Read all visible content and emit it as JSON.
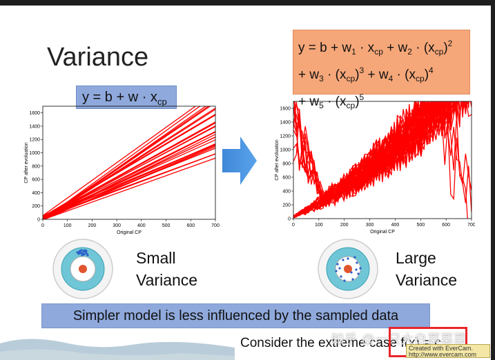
{
  "slide": {
    "title": "Variance",
    "left_eq": {
      "pre": "y = b + w · x",
      "sub": "cp"
    },
    "right_eq": {
      "line1": {
        "a": "y = b + w",
        "a_sub": "1",
        "b": " · x",
        "b_sub": "cp",
        "c": " + w",
        "c_sub": "2",
        "d": " · (x",
        "d_sub": "cp",
        "e": ")",
        "e_sup": "2"
      },
      "line2": {
        "a": "+ w",
        "a_sub": "3",
        "b": " · (x",
        "b_sub": "cp",
        "c": ")",
        "c_sup": "3",
        "d": " + w",
        "d_sub": "4",
        "e": " · (x",
        "e_sub": "cp",
        "f": ")",
        "f_sup": "4"
      },
      "line3": {
        "a": "+ w",
        "a_sub": "5",
        "b": " · (x",
        "b_sub": "cp",
        "c": ")",
        "c_sup": "5"
      }
    },
    "left_caption": {
      "line1": "Small",
      "line2": "Variance"
    },
    "right_caption": {
      "line1": "Large",
      "line2": "Variance"
    },
    "banner": "Simpler model is less influenced by the sampled data",
    "bottom_text": "Consider the extreme case f(x) = c",
    "watermark": "知乎 @一只大白菜菜菜",
    "evercam_line1": "Created with EverCam.",
    "evercam_line2": "http://www.evercam.com"
  },
  "chart_data": [
    {
      "type": "line",
      "xlabel": "Original CP",
      "ylabel": "CP after evoluation",
      "xlim": [
        0,
        700
      ],
      "ylim": [
        0,
        1700
      ],
      "xticks": [
        0,
        100,
        200,
        300,
        400,
        500,
        600,
        700
      ],
      "yticks": [
        0,
        200,
        400,
        600,
        800,
        1000,
        1200,
        1400,
        1600
      ],
      "line_color": "#ff0000",
      "model": "linear",
      "series_count": 30
    },
    {
      "type": "line",
      "xlabel": "Original CP",
      "ylabel": "CP after evoluation",
      "xlim": [
        0,
        700
      ],
      "ylim": [
        0,
        1700
      ],
      "xticks": [
        0,
        100,
        200,
        300,
        400,
        500,
        600,
        700
      ],
      "yticks": [
        0,
        200,
        400,
        600,
        800,
        1000,
        1200,
        1400,
        1600
      ],
      "line_color": "#ff0000",
      "model": "polynomial-degree-5",
      "series_count": 40
    }
  ],
  "colors": {
    "eq_blue": "#8fa9dc",
    "eq_orange": "#f6a779",
    "target_outer": "#6fc6d6",
    "target_center": "#e0552e",
    "dots": "#2a5dc9"
  }
}
